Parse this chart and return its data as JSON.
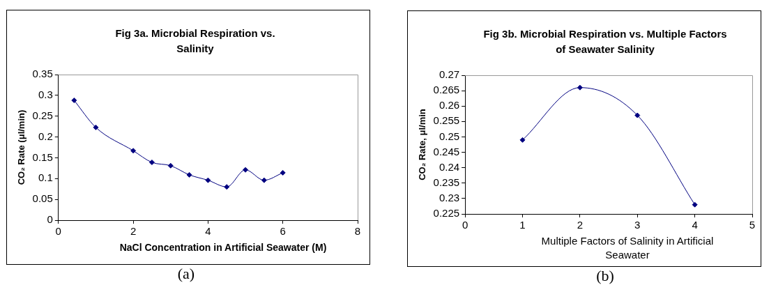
{
  "chart_data": [
    {
      "type": "line",
      "title": "Fig 3a. Microbial Respiration vs. Salinity",
      "xlabel": "NaCl Concentration in Artificial Seawater (M)",
      "ylabel": "CO₂ Rate (μl/min)",
      "x": [
        0.42,
        1,
        2,
        2.5,
        3,
        3.5,
        4,
        4.5,
        5,
        5.5,
        6
      ],
      "series": [
        {
          "color": "#000080",
          "values": [
            0.288,
            0.223,
            0.167,
            0.139,
            0.131,
            0.109,
            0.096,
            0.08,
            0.121,
            0.096,
            0.114
          ]
        }
      ],
      "xlim": [
        0,
        8
      ],
      "xticks": [
        0,
        2,
        4,
        6,
        8
      ],
      "ylim": [
        0,
        0.35
      ],
      "yticks": [
        0,
        0.05,
        0.1,
        0.15,
        0.2,
        0.25,
        0.3,
        0.35
      ],
      "grid": false,
      "legend": false,
      "marker": "diamond",
      "line_style": "solid",
      "annotations": [
        "(a)"
      ]
    },
    {
      "type": "line",
      "title": "Fig 3b. Microbial Respiration vs. Multiple Factors of Seawater Salinity",
      "xlabel": "Multiple Factors of Salinity in Artificial Seawater",
      "ylabel": "CO₂ Rate, μl/min",
      "x": [
        1,
        2,
        3,
        4
      ],
      "series": [
        {
          "color": "#000080",
          "values": [
            0.249,
            0.266,
            0.257,
            0.228
          ]
        }
      ],
      "xlim": [
        0,
        5
      ],
      "xticks": [
        0,
        1,
        2,
        3,
        4,
        5
      ],
      "ylim": [
        0.225,
        0.27
      ],
      "yticks": [
        0.225,
        0.23,
        0.235,
        0.24,
        0.245,
        0.25,
        0.255,
        0.26,
        0.265,
        0.27
      ],
      "grid": false,
      "legend": false,
      "marker": "diamond",
      "line_style": "solid",
      "annotations": [
        "(b)"
      ]
    }
  ]
}
